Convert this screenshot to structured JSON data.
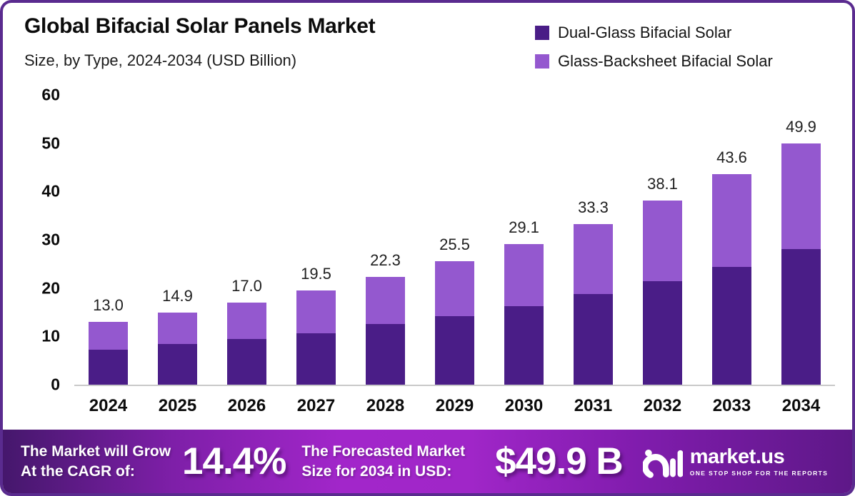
{
  "header": {
    "title": "Global Bifacial Solar Panels Market",
    "subtitle": "Size, by Type, 2024-2034 (USD Billion)"
  },
  "legend": [
    {
      "label": "Dual-Glass Bifacial Solar",
      "color": "#4a1d87"
    },
    {
      "label": "Glass-Backsheet Bifacial Solar",
      "color": "#9458cf"
    }
  ],
  "chart_data": {
    "type": "bar",
    "stacked": true,
    "title": "Global Bifacial Solar Panels Market Size, by Type, 2024-2034 (USD Billion)",
    "categories": [
      "2024",
      "2025",
      "2026",
      "2027",
      "2028",
      "2029",
      "2030",
      "2031",
      "2032",
      "2033",
      "2034"
    ],
    "series": [
      {
        "name": "Dual-Glass Bifacial Solar",
        "color": "#4a1d87",
        "values": [
          7.2,
          8.4,
          9.5,
          10.7,
          12.5,
          14.2,
          16.3,
          18.7,
          21.5,
          24.4,
          28.1
        ]
      },
      {
        "name": "Glass-Backsheet Bifacial Solar",
        "color": "#9458cf",
        "values": [
          5.8,
          6.5,
          7.5,
          8.8,
          9.8,
          11.3,
          12.8,
          14.6,
          16.6,
          19.2,
          21.8
        ]
      }
    ],
    "totals": [
      13.0,
      14.9,
      17.0,
      19.5,
      22.3,
      25.5,
      29.1,
      33.3,
      38.1,
      43.6,
      49.9
    ],
    "total_labels": [
      "13.0",
      "14.9",
      "17.0",
      "19.5",
      "22.3",
      "25.5",
      "29.1",
      "33.3",
      "38.1",
      "43.6",
      "49.9"
    ],
    "xlabel": "",
    "ylabel": "",
    "ylim": [
      0,
      60
    ],
    "y_ticks": [
      "0",
      "10",
      "20",
      "30",
      "40",
      "50",
      "60"
    ],
    "grid": false,
    "legend_position": "top-right"
  },
  "banner": {
    "cagr_label_line1": "The Market will Grow",
    "cagr_label_line2": "At the CAGR of:",
    "cagr_value": "14.4%",
    "forecast_label_line1": "The Forecasted Market",
    "forecast_label_line2": "Size for 2034 in USD:",
    "forecast_value": "$49.9 B",
    "brand": {
      "name": "market.us",
      "tagline": "ONE STOP SHOP FOR THE REPORTS"
    }
  },
  "colors": {
    "frame_border": "#5a2b8f",
    "axis_line": "#c9c9c9",
    "banner_gradient_left": "#45176c",
    "banner_gradient_center": "#a226ca",
    "banner_gradient_right": "#5e1888",
    "banner_text": "#ffffff"
  }
}
